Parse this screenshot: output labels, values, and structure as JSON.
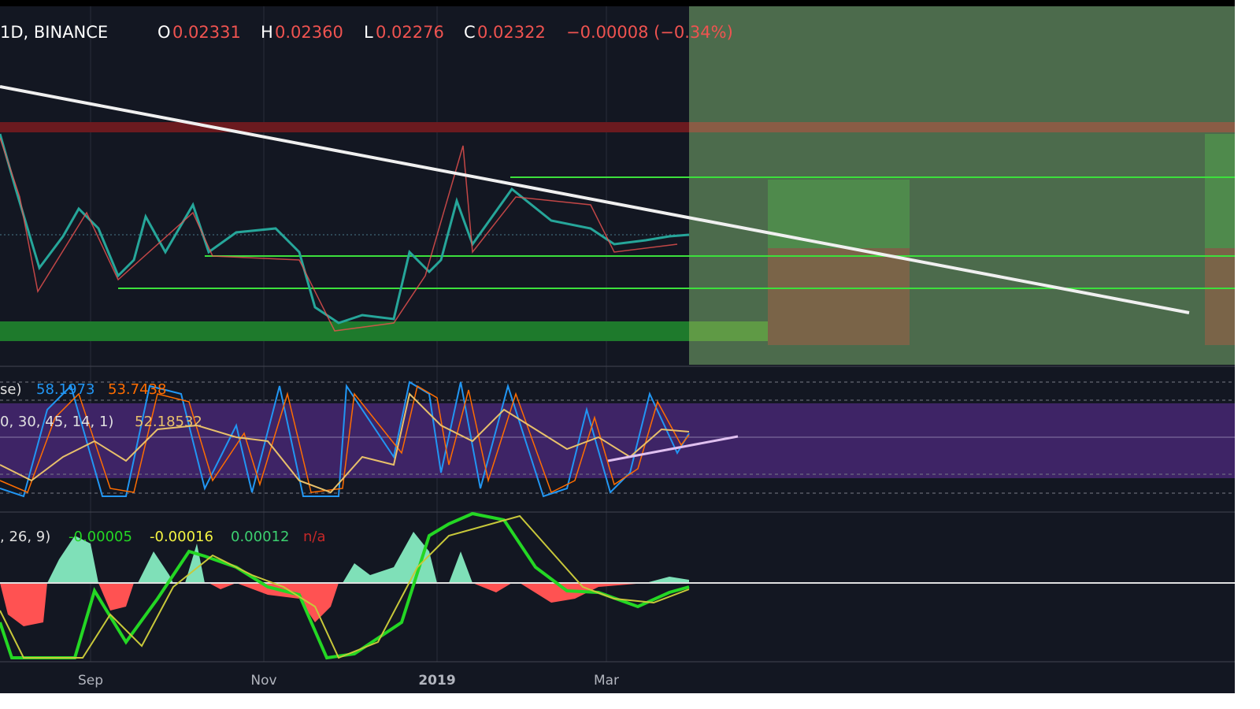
{
  "header": {
    "symbol": "1D, BINANCE",
    "open_label": "O",
    "open": "0.02331",
    "high_label": "H",
    "high": "0.02360",
    "low_label": "L",
    "low": "0.02276",
    "close_label": "C",
    "close": "0.02322",
    "change": "−0.00008 (−0.34%)"
  },
  "indicators": {
    "stoch_label": "se)",
    "stoch_k": "58.1973",
    "stoch_d": "53.7438",
    "osc_label": "0, 30, 45, 14, 1)",
    "osc_value": "52.18532",
    "macd_label": ", 26, 9)",
    "macd_hist": "-0.00005",
    "macd_line": "-0.00016",
    "macd_signal": "0.00012",
    "macd_extra": "n/a"
  },
  "time_axis": [
    "Sep",
    "Nov",
    "2019",
    "Mar"
  ]
}
